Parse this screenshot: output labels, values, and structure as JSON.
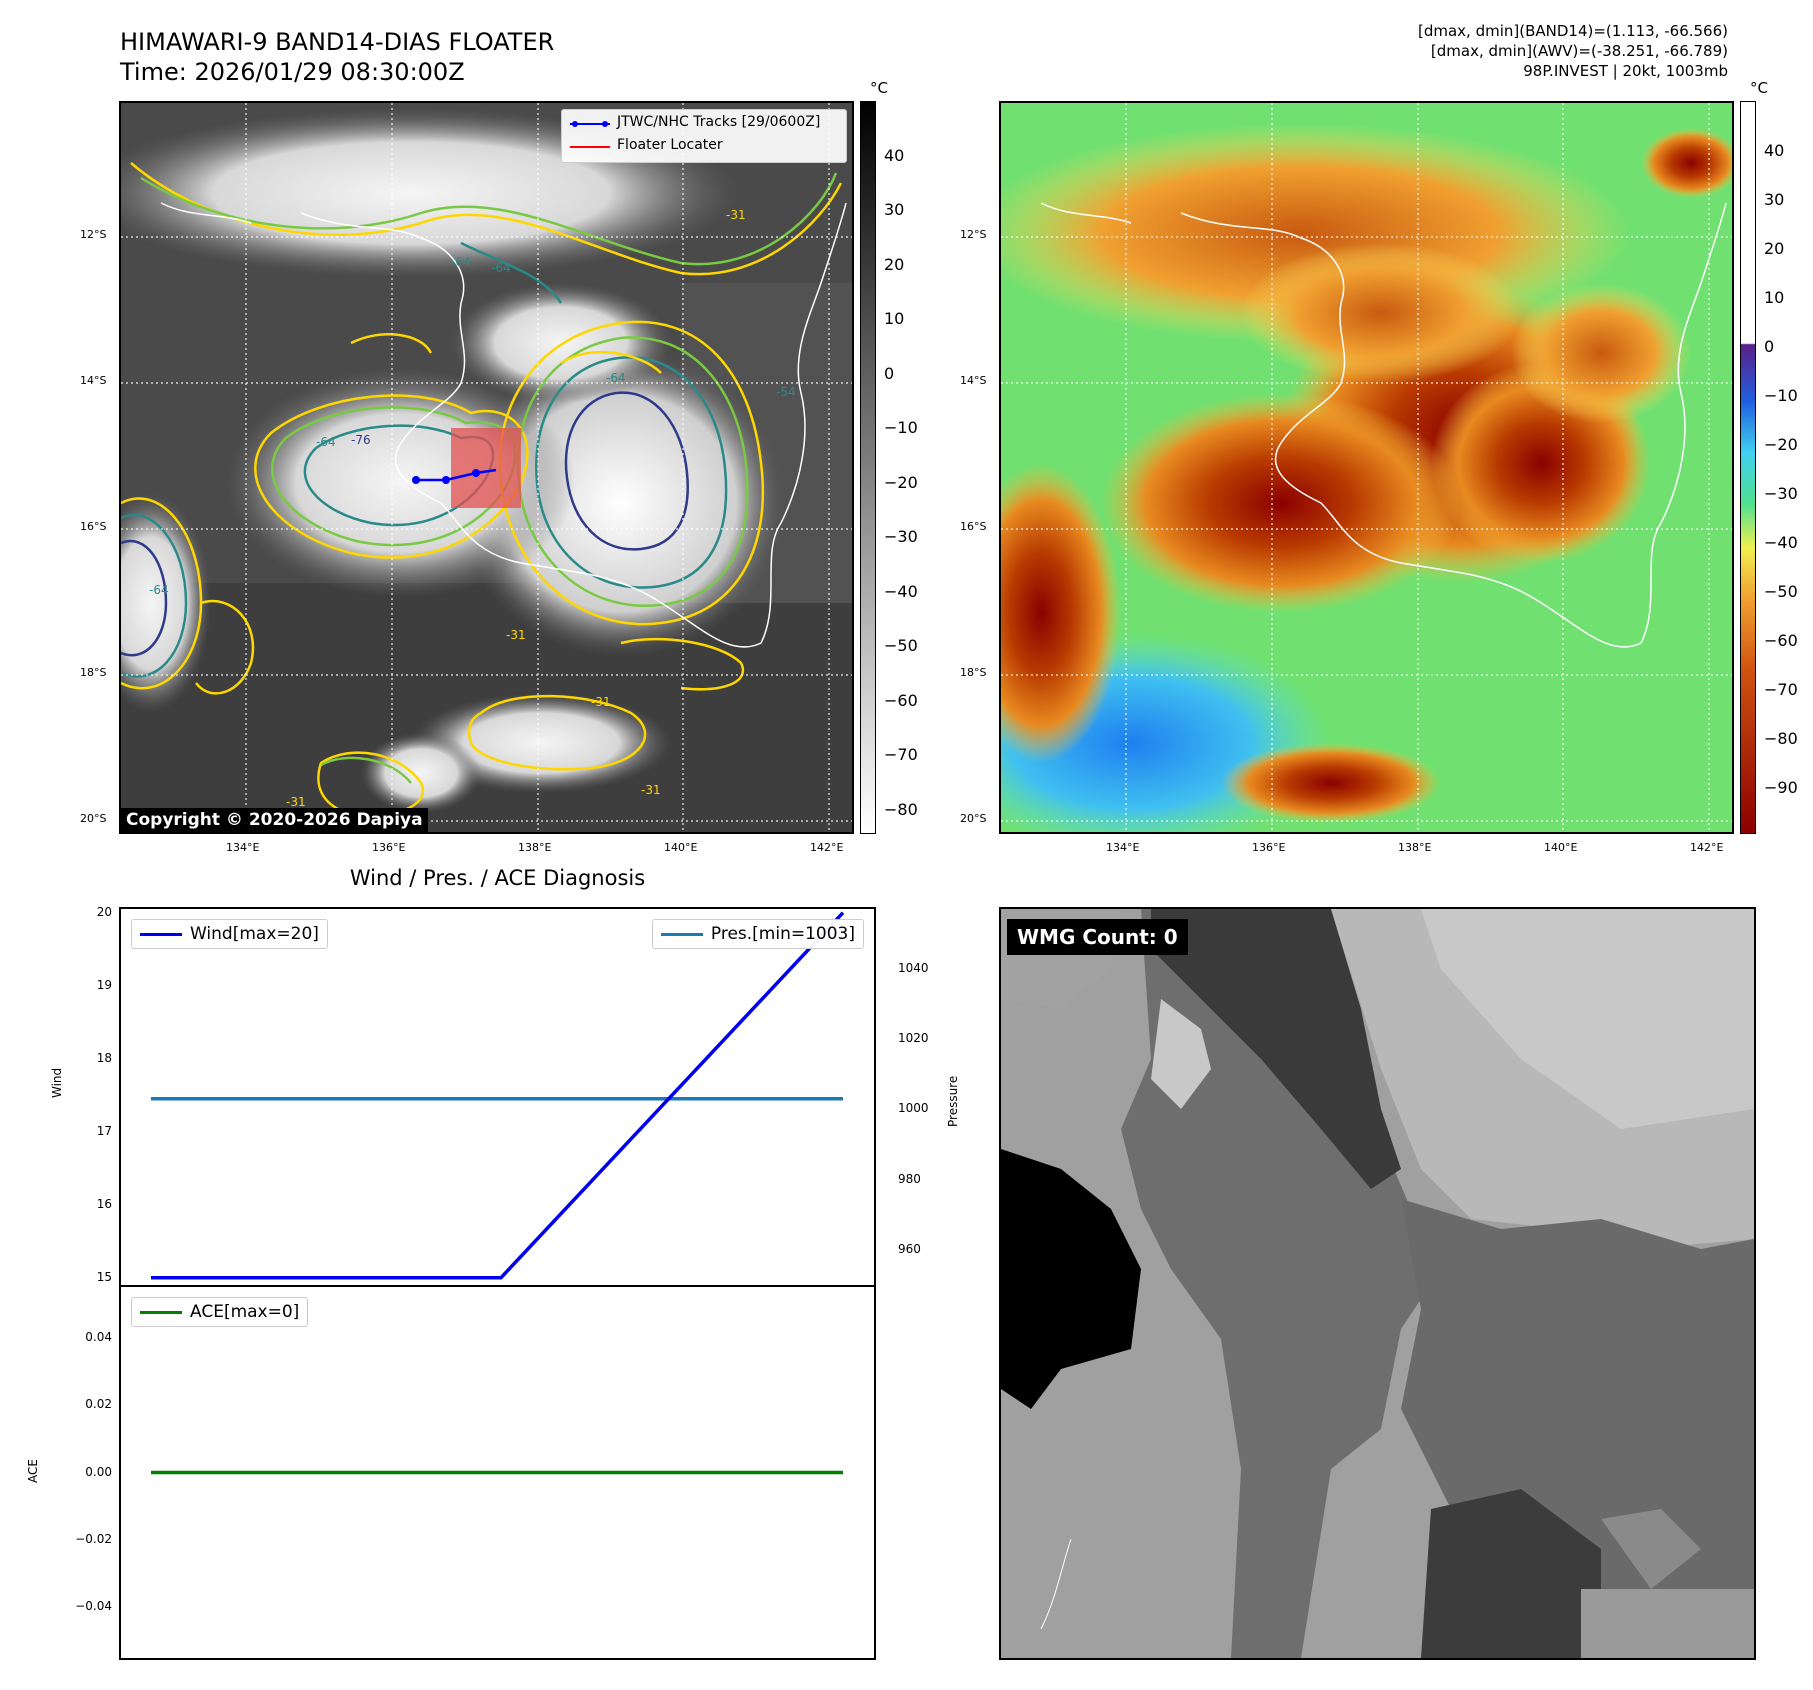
{
  "header": {
    "title_line1": "HIMAWARI-9 BAND14-DIAS FLOATER",
    "title_line2": "Time: 2026/01/29 08:30:00Z",
    "info_line1": "[dmax, dmin](BAND14)=(1.113, -66.566)",
    "info_line2": "[dmax, dmin](AWV)=(-38.251, -66.789)",
    "info_line3": "98P.INVEST | 20kt, 1003mb"
  },
  "map": {
    "lat_labels": [
      "12°S",
      "14°S",
      "16°S",
      "18°S",
      "20°S"
    ],
    "lon_labels": [
      "134°E",
      "136°E",
      "138°E",
      "140°E",
      "142°E"
    ],
    "contour_labels": [
      "-64",
      "-64",
      "-64",
      "-31",
      "-31",
      "-31",
      "-64",
      "-54",
      "-31",
      "-31",
      "-76",
      "-64"
    ],
    "legend": {
      "track_label": "JTWC/NHC Tracks [29/0600Z]",
      "locator_label": "Floater Locater",
      "track_color": "#0000ff",
      "locator_color": "#ff0000"
    },
    "copyright": "Copyright © 2020-2026 Dapiya",
    "unit": "°C"
  },
  "colorbar_left": {
    "ticks": [
      "40",
      "30",
      "20",
      "10",
      "0",
      "−10",
      "−20",
      "−30",
      "−40",
      "−50",
      "−60",
      "−70",
      "−80"
    ]
  },
  "colorbar_right": {
    "ticks": [
      "40",
      "30",
      "20",
      "10",
      "0",
      "−10",
      "−20",
      "−30",
      "−40",
      "−50",
      "−60",
      "−70",
      "−80",
      "−90"
    ]
  },
  "diagnosis": {
    "title": "Wind / Pres. / ACE Diagnosis",
    "wind_legend": "Wind[max=20]",
    "pres_legend": "Pres.[min=1003]",
    "ace_legend": "ACE[max=0]",
    "wind_ylabel": "Wind",
    "pres_ylabel": "Pressure",
    "ace_ylabel": "ACE",
    "wind_ticks": [
      "20",
      "19",
      "18",
      "17",
      "16",
      "15"
    ],
    "pres_ticks": [
      "1040",
      "1020",
      "1000",
      "980",
      "960"
    ],
    "ace_ticks": [
      "0.04",
      "0.02",
      "0.00",
      "−0.02",
      "−0.04"
    ]
  },
  "wmg": {
    "label": "WMG Count: 0"
  },
  "chart_data": [
    {
      "type": "line",
      "name": "wind",
      "series": [
        {
          "name": "Wind[max=20]",
          "x": [
            0,
            1,
            2
          ],
          "values": [
            15,
            15,
            20
          ],
          "color": "#0000ee"
        }
      ],
      "ylim": [
        14.9,
        20.05
      ],
      "ylabel": "Wind"
    },
    {
      "type": "line",
      "name": "pressure",
      "series": [
        {
          "name": "Pres.[min=1003]",
          "x": [
            0,
            1,
            2
          ],
          "values": [
            1003,
            1003,
            1003
          ],
          "color": "#1f77b4"
        }
      ],
      "ylim": [
        950,
        1057
      ],
      "ylabel": "Pressure"
    },
    {
      "type": "line",
      "name": "ace",
      "series": [
        {
          "name": "ACE[max=0]",
          "x": [
            0,
            1,
            2
          ],
          "values": [
            0,
            0,
            0
          ],
          "color": "#008000"
        }
      ],
      "ylim": [
        -0.055,
        0.055
      ],
      "ylabel": "ACE"
    }
  ]
}
